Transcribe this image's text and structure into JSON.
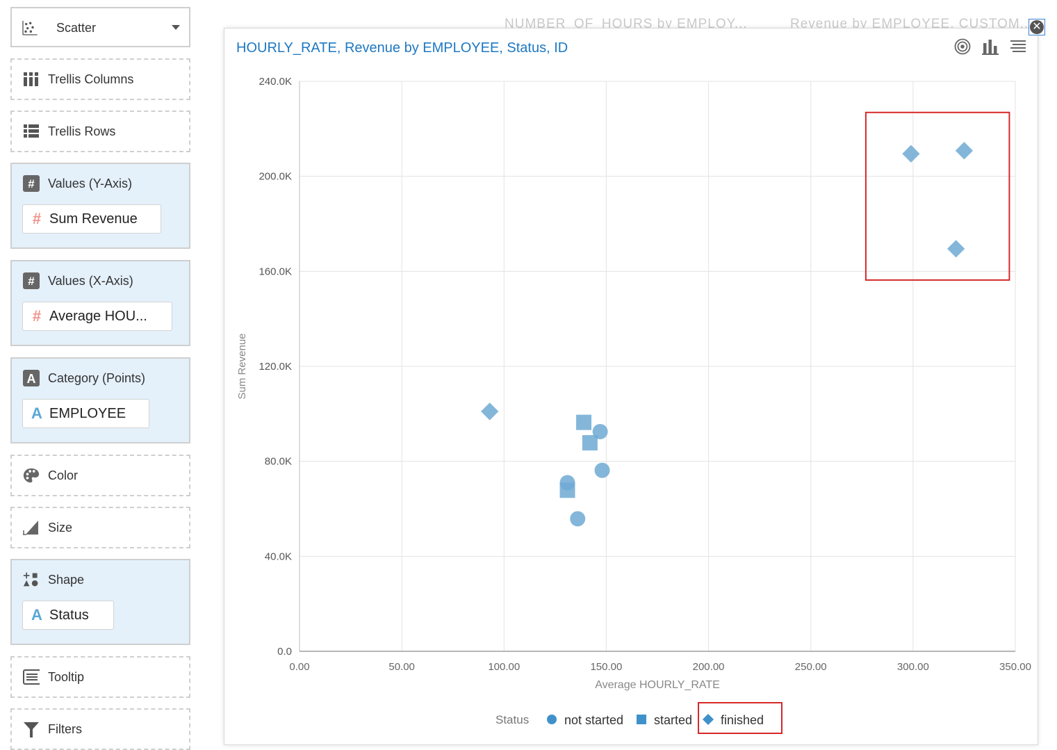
{
  "left_panel": {
    "chart_type": {
      "label": "Scatter",
      "icon": "scatter-icon"
    },
    "trellis_columns": {
      "label": "Trellis Columns"
    },
    "trellis_rows": {
      "label": "Trellis Rows"
    },
    "values_y": {
      "label": "Values (Y-Axis)",
      "item": "Sum Revenue"
    },
    "values_x": {
      "label": "Values (X-Axis)",
      "item": "Average HOU..."
    },
    "category": {
      "label": "Category (Points)",
      "item": "EMPLOYEE"
    },
    "color": {
      "label": "Color"
    },
    "size": {
      "label": "Size"
    },
    "shape": {
      "label": "Shape",
      "item": "Status"
    },
    "tooltip": {
      "label": "Tooltip"
    },
    "filters": {
      "label": "Filters"
    }
  },
  "background_titles": {
    "left": "NUMBER_OF_HOURS by EMPLOY...",
    "right": "Revenue by EMPLOYEE, CUSTOM..."
  },
  "card": {
    "title": "HOURLY_RATE, Revenue by EMPLOYEE, Status, ID",
    "tools": [
      "target-icon",
      "bar-chart-icon",
      "menu-icon"
    ]
  },
  "colors": {
    "accent": "#1e78c2",
    "marker": "#6fa9d4",
    "legend_marker": "#1f7ec1",
    "highlight": "#d62828",
    "panel_fill": "#e4f0fa"
  },
  "chart_data": {
    "type": "scatter",
    "title": "HOURLY_RATE, Revenue by EMPLOYEE, Status, ID",
    "xlabel": "Average HOURLY_RATE",
    "ylabel": "Sum Revenue",
    "xlim": [
      0,
      350
    ],
    "ylim": [
      0,
      240000
    ],
    "x_ticks": [
      "0.00",
      "50.00",
      "100.00",
      "150.00",
      "200.00",
      "250.00",
      "300.00",
      "350.00"
    ],
    "y_ticks": [
      "0.0",
      "40.0K",
      "80.0K",
      "120.0K",
      "160.0K",
      "200.0K",
      "240.0K"
    ],
    "grid": true,
    "legend": {
      "title": "Status",
      "placement": "bottom",
      "entries": [
        {
          "label": "not started",
          "shape": "circle"
        },
        {
          "label": "started",
          "shape": "square"
        },
        {
          "label": "finished",
          "shape": "diamond"
        }
      ]
    },
    "series": [
      {
        "name": "not started",
        "shape": "circle",
        "points": [
          {
            "x": 131,
            "y": 71000
          },
          {
            "x": 136,
            "y": 55800
          },
          {
            "x": 147,
            "y": 92500
          },
          {
            "x": 148,
            "y": 76200
          }
        ]
      },
      {
        "name": "started",
        "shape": "square",
        "points": [
          {
            "x": 131,
            "y": 67800
          },
          {
            "x": 139,
            "y": 96400
          },
          {
            "x": 142,
            "y": 87800
          }
        ]
      },
      {
        "name": "finished",
        "shape": "diamond",
        "points": [
          {
            "x": 93,
            "y": 101000
          },
          {
            "x": 299,
            "y": 209500
          },
          {
            "x": 321,
            "y": 169500
          },
          {
            "x": 325,
            "y": 210800
          }
        ]
      }
    ]
  }
}
